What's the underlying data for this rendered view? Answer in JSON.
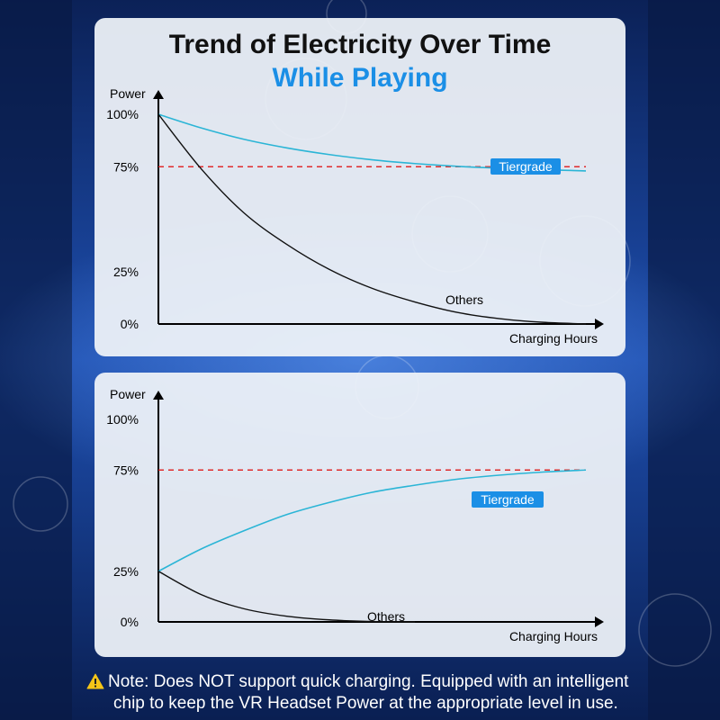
{
  "header": {
    "title": "Trend of Electricity Over Time",
    "subtitle": "While Playing"
  },
  "colors": {
    "tiergrade": "#2bb5d6",
    "others": "#111111",
    "reference": "#e02b2b",
    "badge": "#1b8fe6",
    "subtitle": "#1b8fe6"
  },
  "chart_data": [
    {
      "type": "line",
      "title": "While Playing",
      "xlabel": "Charging Hours",
      "ylabel": "Power",
      "y_ticks": [
        {
          "value": 100,
          "label": "100%"
        },
        {
          "value": 75,
          "label": "75%"
        },
        {
          "value": 25,
          "label": "25%"
        },
        {
          "value": 0,
          "label": "0%"
        }
      ],
      "ylim": [
        0,
        100
      ],
      "xlim": [
        0,
        10
      ],
      "reference_line": {
        "value": 75,
        "style": "dashed"
      },
      "series": [
        {
          "name": "Tiergrade",
          "label_style": "badge",
          "x": [
            0,
            1,
            2,
            3,
            4,
            5,
            6,
            7,
            8,
            9,
            10
          ],
          "y": [
            100,
            93.5,
            88.1,
            84,
            80.8,
            78.3,
            76.5,
            75.2,
            74.3,
            73.6,
            73
          ]
        },
        {
          "name": "Others",
          "label_style": "text",
          "x": [
            0,
            1,
            2,
            3,
            4,
            5,
            6,
            7,
            8,
            9,
            10
          ],
          "y": [
            100,
            74,
            53,
            38,
            26,
            17,
            10.5,
            5.5,
            2.5,
            0.8,
            0
          ]
        }
      ]
    },
    {
      "type": "line",
      "title": "",
      "xlabel": "Charging Hours",
      "ylabel": "Power",
      "y_ticks": [
        {
          "value": 100,
          "label": "100%"
        },
        {
          "value": 75,
          "label": "75%"
        },
        {
          "value": 25,
          "label": "25%"
        },
        {
          "value": 0,
          "label": "0%"
        }
      ],
      "ylim": [
        0,
        100
      ],
      "xlim": [
        0,
        10
      ],
      "reference_line": {
        "value": 75,
        "style": "dashed"
      },
      "series": [
        {
          "name": "Tiergrade",
          "label_style": "badge",
          "x": [
            0,
            1,
            2,
            3,
            4,
            5,
            6,
            7,
            8,
            9,
            10
          ],
          "y": [
            25,
            36,
            45,
            53,
            59,
            64,
            67.5,
            70.5,
            72.5,
            74,
            75
          ]
        },
        {
          "name": "Others",
          "label_style": "text",
          "x": [
            0,
            1,
            2,
            3,
            4,
            5,
            6
          ],
          "y": [
            25,
            13.5,
            6.5,
            2.8,
            1,
            0.2,
            0
          ]
        }
      ]
    }
  ],
  "note": {
    "line1": "Note: Does NOT support quick charging. Equipped with an intelligent",
    "line2": "chip to keep the VR Headset Power at the appropriate level in use."
  }
}
